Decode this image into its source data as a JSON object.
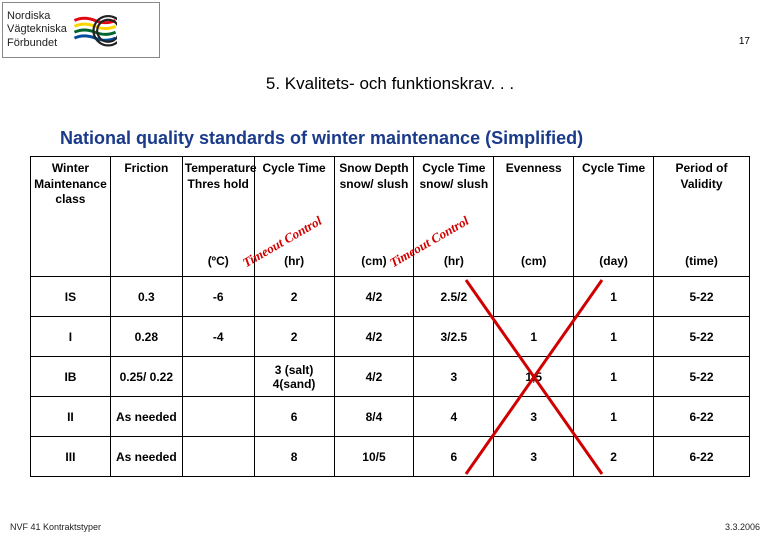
{
  "page": {
    "number": "17",
    "section_title": "5. Kvalitets- och funktionskrav. . .",
    "chart_title": "National quality standards of winter maintenance (Simplified)"
  },
  "logo": {
    "line1": "Nordiska",
    "line2": "Vägtekniska",
    "line3": "Förbundet",
    "wave_colors": [
      "#e30613",
      "#ffd400",
      "#00652e",
      "#004b9b"
    ],
    "ring_color": "#222"
  },
  "overlays": {
    "label1": "Timeout Control",
    "label2": "Timeout Control",
    "x_color": "#d10000",
    "x_stroke": 3
  },
  "table": {
    "columns": [
      {
        "label": "Winter Maintenance class",
        "unit": ""
      },
      {
        "label": "Friction",
        "unit": ""
      },
      {
        "label": "Temperature Thres hold",
        "unit": "(ºC)"
      },
      {
        "label": "Cycle Time",
        "unit": "(hr)"
      },
      {
        "label": "Snow Depth snow/ slush",
        "unit": "(cm)"
      },
      {
        "label": "Cycle Time snow/ slush",
        "unit": "(hr)"
      },
      {
        "label": "Evenness",
        "unit": "(cm)"
      },
      {
        "label": "Cycle Time",
        "unit": "(day)"
      },
      {
        "label": "Period of Validity",
        "unit": "(time)"
      }
    ],
    "rows": [
      [
        "IS",
        "0.3",
        "-6",
        "2",
        "4/2",
        "2.5/2",
        "",
        "1",
        "5-22"
      ],
      [
        "I",
        "0.28",
        "-4",
        "2",
        "4/2",
        "3/2.5",
        "1",
        "1",
        "5-22"
      ],
      [
        "IB",
        "0.25/ 0.22",
        "",
        "3 (salt) 4(sand)",
        "4/2",
        "3",
        "1,5",
        "1",
        "5-22"
      ],
      [
        "II",
        "As needed",
        "",
        "6",
        "8/4",
        "4",
        "3",
        "1",
        "6-22"
      ],
      [
        "III",
        "As needed",
        "",
        "8",
        "10/5",
        "6",
        "3",
        "2",
        "6-22"
      ]
    ]
  },
  "footer": {
    "left": "NVF 41 Kontraktstyper",
    "right": "3.3.2006"
  }
}
